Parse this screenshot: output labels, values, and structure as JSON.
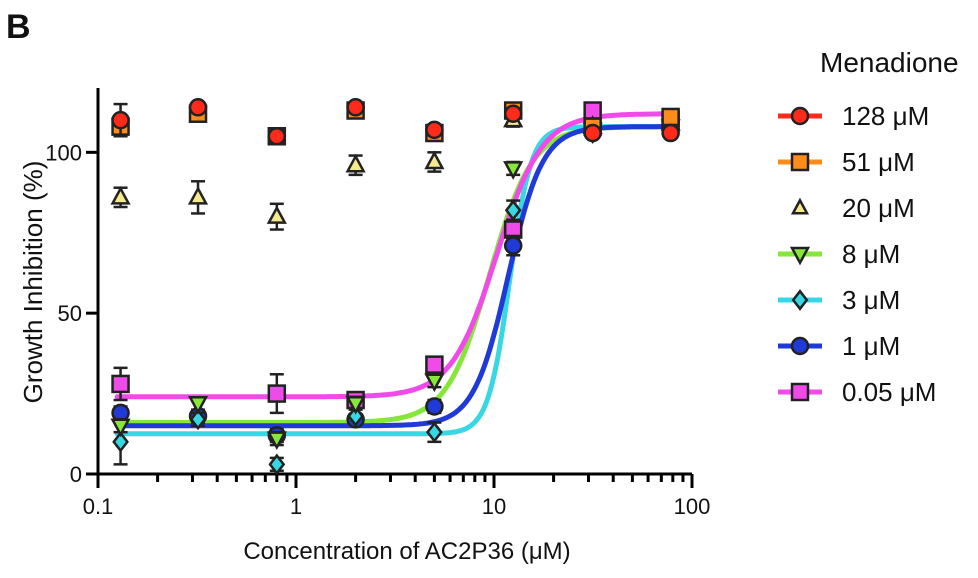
{
  "panel_label": "B",
  "chart_data": {
    "type": "scatter",
    "title": "",
    "xlabel": "Concentration of AC2P36 (μM)",
    "ylabel": "Growth Inhibition (%)",
    "x_scale": "log",
    "xlim": [
      0.1,
      100
    ],
    "ylim": [
      0,
      120
    ],
    "x_ticks": [
      0.1,
      1,
      10,
      100
    ],
    "x_tick_labels": [
      "0.1",
      "1",
      "10",
      "100"
    ],
    "y_ticks": [
      0,
      50,
      100
    ],
    "y_tick_labels": [
      "0",
      "50",
      "100"
    ],
    "legend": {
      "title": "Menadione",
      "placement": "right"
    },
    "x": [
      0.13,
      0.32,
      0.8,
      2.0,
      5.0,
      12.5,
      31.5,
      78.0
    ],
    "series": [
      {
        "name": "128 μM",
        "marker": "circle",
        "fill": "#ff2a1a",
        "line_color": "#ff2a1a",
        "values": [
          110,
          114,
          105,
          114,
          107,
          112,
          106,
          106
        ],
        "errors": [
          5,
          1,
          1,
          1,
          1,
          1,
          1,
          1
        ],
        "fit": null
      },
      {
        "name": "51 μM",
        "marker": "square",
        "fill": "#ff8c1a",
        "line_color": "#ff8c1a",
        "values": [
          108,
          112,
          105,
          113,
          106,
          113,
          108,
          111
        ],
        "errors": [
          3,
          1,
          1,
          1,
          1,
          1,
          1,
          1
        ],
        "fit": null
      },
      {
        "name": "20 μM",
        "marker": "triangle-up",
        "fill": "#f4e98c",
        "line_color": null,
        "values": [
          86,
          86,
          80,
          96,
          97,
          110,
          108,
          109
        ],
        "errors": [
          3,
          5,
          4,
          3,
          3,
          2,
          1,
          1
        ],
        "fit": null
      },
      {
        "name": "8 μM",
        "marker": "triangle-down",
        "fill": "#86e63a",
        "line_color": "#86e63a",
        "values": [
          15,
          22,
          11,
          22,
          29,
          95,
          107,
          108
        ],
        "errors": [
          2,
          1,
          2,
          2,
          2,
          2,
          1,
          1
        ],
        "fit": {
          "bottom": 16,
          "top": 108,
          "ec50": 9.5,
          "hill": 4.0
        }
      },
      {
        "name": "3 μM",
        "marker": "diamond",
        "fill": "#37d8e4",
        "line_color": "#37d8e4",
        "values": [
          10,
          17,
          3,
          18,
          13,
          82,
          106,
          108
        ],
        "errors": [
          7,
          2,
          2,
          1,
          3,
          3,
          1,
          1
        ],
        "fit": {
          "bottom": 12.5,
          "top": 108,
          "ec50": 12.0,
          "hill": 8.0
        }
      },
      {
        "name": "1 μM",
        "marker": "circle",
        "fill": "#1f3ad6",
        "line_color": "#1f3ad6",
        "values": [
          19,
          18,
          12,
          17,
          21,
          71,
          108,
          107
        ],
        "errors": [
          2,
          2,
          2,
          1,
          2,
          3,
          1,
          1
        ],
        "fit": {
          "bottom": 15,
          "top": 108,
          "ec50": 11.8,
          "hill": 5.0
        }
      },
      {
        "name": "0.05 μM",
        "marker": "square",
        "fill": "#f04ae8",
        "line_color": "#f04ae8",
        "values": [
          28,
          null,
          25,
          23,
          34,
          76,
          113,
          110
        ],
        "errors": [
          5,
          null,
          6,
          2,
          2,
          3,
          1,
          1
        ],
        "fit": {
          "bottom": 24,
          "top": 112,
          "ec50": 10.3,
          "hill": 3.8
        }
      }
    ]
  }
}
